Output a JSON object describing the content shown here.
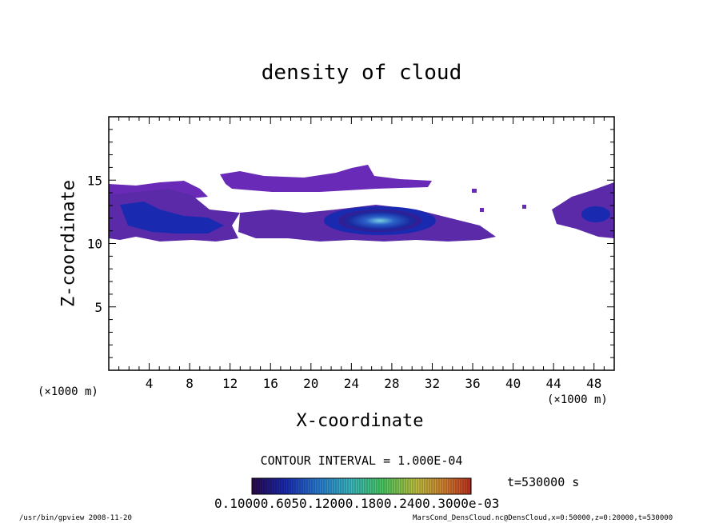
{
  "chart_data": {
    "type": "heatmap",
    "title": "density of cloud",
    "xlabel": "X-coordinate",
    "ylabel": "Z-coordinate",
    "x_unit": "(×1000 m)",
    "xlim": [
      0,
      50
    ],
    "ylim": [
      0,
      20
    ],
    "xticks": [
      "4",
      "8",
      "12",
      "16",
      "20",
      "24",
      "28",
      "32",
      "36",
      "40",
      "44",
      "48"
    ],
    "xtick_values": [
      4,
      8,
      12,
      16,
      20,
      24,
      28,
      32,
      36,
      40,
      44,
      48
    ],
    "yticks": [
      "5",
      "10",
      "15"
    ],
    "ytick_values": [
      5,
      10,
      15
    ],
    "contour_interval": "CONTOUR INTERVAL = 1.000E-04",
    "time_label": "t=530000 s",
    "colorbar_labels": "0.10000.6050.12000.1800.2400.3000e-03",
    "colorbar_colors": [
      "#2a0a4a",
      "#1a2ab0",
      "#2a7ad0",
      "#3ab8c0",
      "#4ac860",
      "#c0c040",
      "#d08030",
      "#c03020"
    ],
    "regions": [
      {
        "name": "upper band",
        "x": [
          1,
          11
        ],
        "z": [
          13.5,
          15.0
        ],
        "level": 0.1
      },
      {
        "name": "upper streak",
        "x": [
          12,
          33
        ],
        "z": [
          14.5,
          16.2
        ],
        "level": 0.1
      },
      {
        "name": "main layer left",
        "x": [
          0,
          14
        ],
        "z": [
          10.2,
          13.5
        ],
        "level": 0.45
      },
      {
        "name": "main layer center",
        "x": [
          13,
          38
        ],
        "z": [
          10.2,
          13.0
        ],
        "level": 0.3
      },
      {
        "name": "cloud core",
        "x": [
          22,
          30
        ],
        "z": [
          11.0,
          12.8
        ],
        "level": 0.6
      },
      {
        "name": "right patch",
        "x": [
          43,
          50
        ],
        "z": [
          10.2,
          14.8
        ],
        "level": 0.4
      }
    ]
  },
  "footer": {
    "left": "/usr/bin/gpview  2008-11-20",
    "right": "MarsCond_DensCloud.nc@DensCloud,x=0:50000,z=0:20000,t=530000"
  }
}
